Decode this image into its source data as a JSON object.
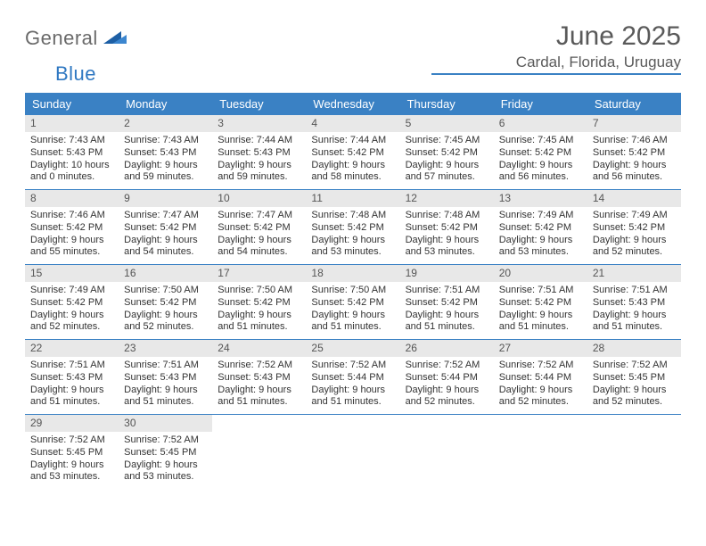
{
  "logo": {
    "general": "General",
    "blue": "Blue"
  },
  "title": "June 2025",
  "location": "Cardal, Florida, Uruguay",
  "colors": {
    "accent": "#3a81c4",
    "header_text": "#ffffff",
    "daynum_bg": "#e8e8e8",
    "body_text": "#333333",
    "title_text": "#5a5a5a"
  },
  "day_headers": [
    "Sunday",
    "Monday",
    "Tuesday",
    "Wednesday",
    "Thursday",
    "Friday",
    "Saturday"
  ],
  "weeks": [
    [
      {
        "n": "1",
        "sr": "Sunrise: 7:43 AM",
        "ss": "Sunset: 5:43 PM",
        "dl": "Daylight: 10 hours and 0 minutes."
      },
      {
        "n": "2",
        "sr": "Sunrise: 7:43 AM",
        "ss": "Sunset: 5:43 PM",
        "dl": "Daylight: 9 hours and 59 minutes."
      },
      {
        "n": "3",
        "sr": "Sunrise: 7:44 AM",
        "ss": "Sunset: 5:43 PM",
        "dl": "Daylight: 9 hours and 59 minutes."
      },
      {
        "n": "4",
        "sr": "Sunrise: 7:44 AM",
        "ss": "Sunset: 5:42 PM",
        "dl": "Daylight: 9 hours and 58 minutes."
      },
      {
        "n": "5",
        "sr": "Sunrise: 7:45 AM",
        "ss": "Sunset: 5:42 PM",
        "dl": "Daylight: 9 hours and 57 minutes."
      },
      {
        "n": "6",
        "sr": "Sunrise: 7:45 AM",
        "ss": "Sunset: 5:42 PM",
        "dl": "Daylight: 9 hours and 56 minutes."
      },
      {
        "n": "7",
        "sr": "Sunrise: 7:46 AM",
        "ss": "Sunset: 5:42 PM",
        "dl": "Daylight: 9 hours and 56 minutes."
      }
    ],
    [
      {
        "n": "8",
        "sr": "Sunrise: 7:46 AM",
        "ss": "Sunset: 5:42 PM",
        "dl": "Daylight: 9 hours and 55 minutes."
      },
      {
        "n": "9",
        "sr": "Sunrise: 7:47 AM",
        "ss": "Sunset: 5:42 PM",
        "dl": "Daylight: 9 hours and 54 minutes."
      },
      {
        "n": "10",
        "sr": "Sunrise: 7:47 AM",
        "ss": "Sunset: 5:42 PM",
        "dl": "Daylight: 9 hours and 54 minutes."
      },
      {
        "n": "11",
        "sr": "Sunrise: 7:48 AM",
        "ss": "Sunset: 5:42 PM",
        "dl": "Daylight: 9 hours and 53 minutes."
      },
      {
        "n": "12",
        "sr": "Sunrise: 7:48 AM",
        "ss": "Sunset: 5:42 PM",
        "dl": "Daylight: 9 hours and 53 minutes."
      },
      {
        "n": "13",
        "sr": "Sunrise: 7:49 AM",
        "ss": "Sunset: 5:42 PM",
        "dl": "Daylight: 9 hours and 53 minutes."
      },
      {
        "n": "14",
        "sr": "Sunrise: 7:49 AM",
        "ss": "Sunset: 5:42 PM",
        "dl": "Daylight: 9 hours and 52 minutes."
      }
    ],
    [
      {
        "n": "15",
        "sr": "Sunrise: 7:49 AM",
        "ss": "Sunset: 5:42 PM",
        "dl": "Daylight: 9 hours and 52 minutes."
      },
      {
        "n": "16",
        "sr": "Sunrise: 7:50 AM",
        "ss": "Sunset: 5:42 PM",
        "dl": "Daylight: 9 hours and 52 minutes."
      },
      {
        "n": "17",
        "sr": "Sunrise: 7:50 AM",
        "ss": "Sunset: 5:42 PM",
        "dl": "Daylight: 9 hours and 51 minutes."
      },
      {
        "n": "18",
        "sr": "Sunrise: 7:50 AM",
        "ss": "Sunset: 5:42 PM",
        "dl": "Daylight: 9 hours and 51 minutes."
      },
      {
        "n": "19",
        "sr": "Sunrise: 7:51 AM",
        "ss": "Sunset: 5:42 PM",
        "dl": "Daylight: 9 hours and 51 minutes."
      },
      {
        "n": "20",
        "sr": "Sunrise: 7:51 AM",
        "ss": "Sunset: 5:42 PM",
        "dl": "Daylight: 9 hours and 51 minutes."
      },
      {
        "n": "21",
        "sr": "Sunrise: 7:51 AM",
        "ss": "Sunset: 5:43 PM",
        "dl": "Daylight: 9 hours and 51 minutes."
      }
    ],
    [
      {
        "n": "22",
        "sr": "Sunrise: 7:51 AM",
        "ss": "Sunset: 5:43 PM",
        "dl": "Daylight: 9 hours and 51 minutes."
      },
      {
        "n": "23",
        "sr": "Sunrise: 7:51 AM",
        "ss": "Sunset: 5:43 PM",
        "dl": "Daylight: 9 hours and 51 minutes."
      },
      {
        "n": "24",
        "sr": "Sunrise: 7:52 AM",
        "ss": "Sunset: 5:43 PM",
        "dl": "Daylight: 9 hours and 51 minutes."
      },
      {
        "n": "25",
        "sr": "Sunrise: 7:52 AM",
        "ss": "Sunset: 5:44 PM",
        "dl": "Daylight: 9 hours and 51 minutes."
      },
      {
        "n": "26",
        "sr": "Sunrise: 7:52 AM",
        "ss": "Sunset: 5:44 PM",
        "dl": "Daylight: 9 hours and 52 minutes."
      },
      {
        "n": "27",
        "sr": "Sunrise: 7:52 AM",
        "ss": "Sunset: 5:44 PM",
        "dl": "Daylight: 9 hours and 52 minutes."
      },
      {
        "n": "28",
        "sr": "Sunrise: 7:52 AM",
        "ss": "Sunset: 5:45 PM",
        "dl": "Daylight: 9 hours and 52 minutes."
      }
    ],
    [
      {
        "n": "29",
        "sr": "Sunrise: 7:52 AM",
        "ss": "Sunset: 5:45 PM",
        "dl": "Daylight: 9 hours and 53 minutes."
      },
      {
        "n": "30",
        "sr": "Sunrise: 7:52 AM",
        "ss": "Sunset: 5:45 PM",
        "dl": "Daylight: 9 hours and 53 minutes."
      },
      null,
      null,
      null,
      null,
      null
    ]
  ]
}
